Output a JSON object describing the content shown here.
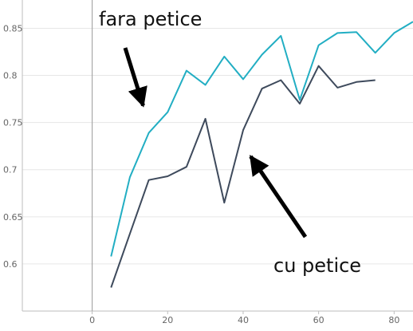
{
  "chart_data": {
    "type": "line",
    "title": "",
    "xlabel": "",
    "ylabel": "",
    "xlim": [
      -18.5,
      85
    ],
    "ylim": [
      0.55,
      0.88
    ],
    "x_ticks": [
      0,
      20,
      40,
      60,
      80
    ],
    "y_ticks": [
      0.6,
      0.65,
      0.7,
      0.75,
      0.8,
      0.85
    ],
    "grid": "horizontal",
    "legend": "none",
    "series": [
      {
        "color": "#22aec3",
        "x": [
          5,
          10,
          15,
          20,
          25,
          30,
          35,
          40,
          45,
          50,
          55,
          60,
          65,
          70,
          75,
          80,
          85
        ],
        "y": [
          0.608,
          0.692,
          0.739,
          0.761,
          0.805,
          0.79,
          0.82,
          0.796,
          0.822,
          0.842,
          0.774,
          0.832,
          0.845,
          0.846,
          0.824,
          0.845,
          0.857
        ]
      },
      {
        "color": "#3e4a5c",
        "x": [
          5,
          10,
          15,
          20,
          25,
          30,
          35,
          40,
          45,
          50,
          55,
          60,
          65,
          70,
          75
        ],
        "y": [
          0.575,
          0.632,
          0.689,
          0.693,
          0.703,
          0.754,
          0.665,
          0.742,
          0.786,
          0.795,
          0.77,
          0.81,
          0.787,
          0.793,
          0.795
        ]
      }
    ],
    "annotations": [
      {
        "text": "fara petice",
        "points_to": [
          13.5,
          0.768
        ]
      },
      {
        "text": "cu petice",
        "points_to": [
          42,
          0.714
        ]
      }
    ]
  }
}
